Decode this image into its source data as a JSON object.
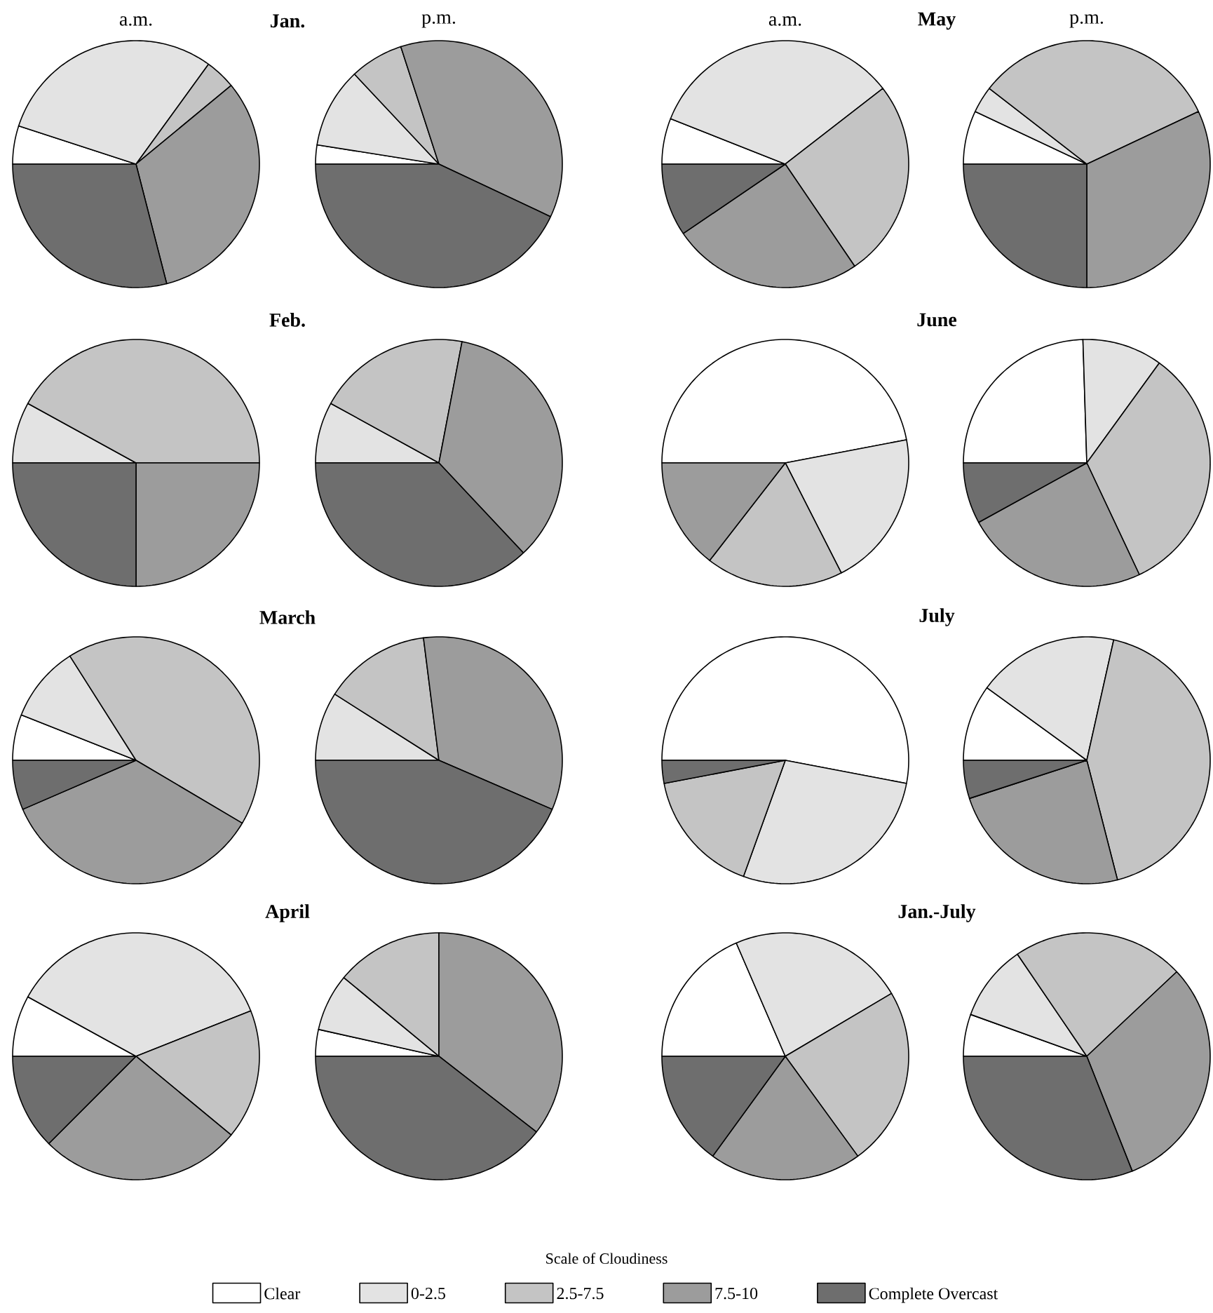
{
  "chart_data": [
    {
      "type": "pie",
      "title": "Jan.",
      "subtitle": "a.m.",
      "categories": [
        null,
        null,
        null,
        null,
        null
      ],
      "values": [
        5,
        30,
        4,
        32,
        29
      ],
      "colors": [
        "#ffffff",
        "#e3e3e3",
        "#c4c4c4",
        "#9c9c9c",
        "#6e6e6e"
      ]
    },
    {
      "type": "pie",
      "subtitle": "p.m.",
      "categories": [
        null,
        null,
        null,
        null,
        null
      ],
      "values": [
        2.5,
        10.5,
        7,
        37,
        43
      ],
      "colors": [
        "#ffffff",
        "#e3e3e3",
        "#c4c4c4",
        "#9c9c9c",
        "#6e6e6e"
      ]
    },
    {
      "type": "pie",
      "title": "May",
      "subtitle": "a.m.",
      "categories": [
        null,
        null,
        null,
        null,
        null
      ],
      "values": [
        6,
        33.5,
        26,
        25,
        9.5
      ],
      "colors": [
        "#ffffff",
        "#e3e3e3",
        "#c4c4c4",
        "#9c9c9c",
        "#6e6e6e"
      ]
    },
    {
      "type": "pie",
      "subtitle": "p.m.",
      "categories": [
        null,
        null,
        null,
        null,
        null
      ],
      "values": [
        7,
        3.5,
        32.5,
        32,
        25
      ],
      "colors": [
        "#ffffff",
        "#e3e3e3",
        "#c4c4c4",
        "#9c9c9c",
        "#6e6e6e"
      ]
    },
    {
      "type": "pie",
      "title": "Feb.",
      "categories": [
        null,
        null,
        null,
        null,
        null
      ],
      "values": [
        0,
        8,
        42,
        25,
        25
      ],
      "colors": [
        "#ffffff",
        "#e3e3e3",
        "#c4c4c4",
        "#9c9c9c",
        "#6e6e6e"
      ]
    },
    {
      "type": "pie",
      "categories": [
        null,
        null,
        null,
        null,
        null
      ],
      "values": [
        0,
        8,
        20,
        35,
        37
      ],
      "colors": [
        "#ffffff",
        "#e3e3e3",
        "#c4c4c4",
        "#9c9c9c",
        "#6e6e6e"
      ]
    },
    {
      "type": "pie",
      "title": "June",
      "categories": [
        null,
        null,
        null,
        null,
        null
      ],
      "values": [
        47,
        20.5,
        18,
        14.5,
        0
      ],
      "colors": [
        "#ffffff",
        "#e3e3e3",
        "#c4c4c4",
        "#9c9c9c",
        "#6e6e6e"
      ]
    },
    {
      "type": "pie",
      "categories": [
        null,
        null,
        null,
        null,
        null
      ],
      "values": [
        24.5,
        10.5,
        33,
        24,
        8
      ],
      "colors": [
        "#ffffff",
        "#e3e3e3",
        "#c4c4c4",
        "#9c9c9c",
        "#6e6e6e"
      ]
    },
    {
      "type": "pie",
      "title": "March",
      "categories": [
        null,
        null,
        null,
        null,
        null
      ],
      "values": [
        6,
        10,
        42.5,
        35,
        6.5
      ],
      "colors": [
        "#ffffff",
        "#e3e3e3",
        "#c4c4c4",
        "#9c9c9c",
        "#6e6e6e"
      ]
    },
    {
      "type": "pie",
      "categories": [
        null,
        null,
        null,
        null,
        null
      ],
      "values": [
        0,
        9,
        14,
        33.5,
        43.5
      ],
      "colors": [
        "#ffffff",
        "#e3e3e3",
        "#c4c4c4",
        "#9c9c9c",
        "#6e6e6e"
      ]
    },
    {
      "type": "pie",
      "title": "July",
      "categories": [
        null,
        null,
        null,
        null,
        null
      ],
      "values": [
        53,
        27.5,
        16.5,
        0,
        3
      ],
      "colors": [
        "#ffffff",
        "#e3e3e3",
        "#c4c4c4",
        "#9c9c9c",
        "#6e6e6e"
      ]
    },
    {
      "type": "pie",
      "categories": [
        null,
        null,
        null,
        null,
        null
      ],
      "values": [
        10,
        18.5,
        42.5,
        24,
        5
      ],
      "colors": [
        "#ffffff",
        "#e3e3e3",
        "#c4c4c4",
        "#9c9c9c",
        "#6e6e6e"
      ]
    },
    {
      "type": "pie",
      "title": "April",
      "categories": [
        null,
        null,
        null,
        null,
        null
      ],
      "values": [
        8,
        36,
        17,
        26.5,
        12.5
      ],
      "colors": [
        "#ffffff",
        "#e3e3e3",
        "#c4c4c4",
        "#9c9c9c",
        "#6e6e6e"
      ]
    },
    {
      "type": "pie",
      "categories": [
        null,
        null,
        null,
        null,
        null
      ],
      "values": [
        3.5,
        7.5,
        14,
        35.5,
        39.5
      ],
      "colors": [
        "#ffffff",
        "#e3e3e3",
        "#c4c4c4",
        "#9c9c9c",
        "#6e6e6e"
      ]
    },
    {
      "type": "pie",
      "title": "Jan.-July",
      "categories": [
        null,
        null,
        null,
        null,
        null
      ],
      "values": [
        18.5,
        23,
        23.5,
        20,
        15
      ],
      "colors": [
        "#ffffff",
        "#e3e3e3",
        "#c4c4c4",
        "#9c9c9c",
        "#6e6e6e"
      ]
    },
    {
      "type": "pie",
      "legend_title": "Scale of Cloudiness",
      "legend": "bottom",
      "categories": [
        "Clear",
        "0-2.5",
        "2.5-7.5",
        "7.5-10",
        "Complete Overcast"
      ],
      "values": [
        5.5,
        10,
        22.5,
        31,
        31
      ],
      "colors": [
        "#ffffff",
        "#e3e3e3",
        "#c4c4c4",
        "#9c9c9c",
        "#6e6e6e"
      ]
    }
  ]
}
